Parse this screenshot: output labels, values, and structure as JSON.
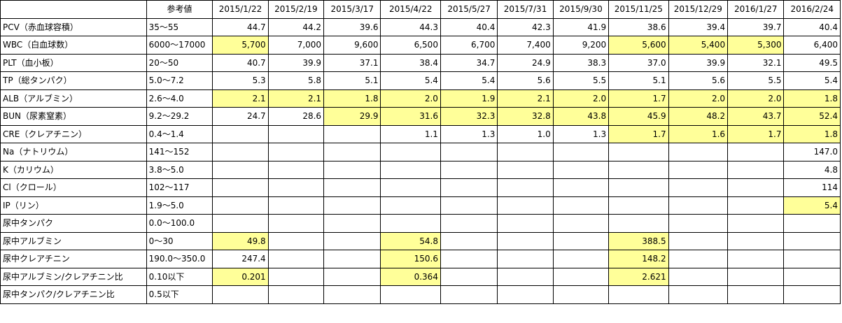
{
  "highlight_color": "#ffff99",
  "header": {
    "ref_label": "参考値",
    "dates": [
      "2015/1/22",
      "2015/2/19",
      "2015/3/17",
      "2015/4/22",
      "2015/5/27",
      "2015/7/31",
      "2015/9/30",
      "2015/11/25",
      "2015/12/29",
      "2016/1/27",
      "2016/2/24"
    ]
  },
  "rows": [
    {
      "label": "PCV（赤血球容積）",
      "ref": "35〜55",
      "values": [
        "44.7",
        "44.2",
        "39.6",
        "44.3",
        "40.4",
        "42.3",
        "41.9",
        "38.6",
        "39.4",
        "39.7",
        "40.4"
      ],
      "highlight": [
        false,
        false,
        false,
        false,
        false,
        false,
        false,
        false,
        false,
        false,
        false
      ]
    },
    {
      "label": "WBC（白血球数）",
      "ref": "6000〜17000",
      "values": [
        "5,700",
        "7,000",
        "9,600",
        "6,500",
        "6,700",
        "7,400",
        "9,200",
        "5,600",
        "5,400",
        "5,300",
        "6,400"
      ],
      "highlight": [
        true,
        false,
        false,
        false,
        false,
        false,
        false,
        true,
        true,
        true,
        false
      ]
    },
    {
      "label": "PLT（血小板）",
      "ref": "20〜50",
      "values": [
        "40.7",
        "39.9",
        "37.1",
        "38.4",
        "34.7",
        "24.9",
        "38.3",
        "37.0",
        "39.9",
        "32.1",
        "49.5"
      ],
      "highlight": [
        false,
        false,
        false,
        false,
        false,
        false,
        false,
        false,
        false,
        false,
        false
      ]
    },
    {
      "label": "TP（総タンパク）",
      "ref": "5.0〜7.2",
      "values": [
        "5.3",
        "5.8",
        "5.1",
        "5.4",
        "5.4",
        "5.6",
        "5.5",
        "5.1",
        "5.6",
        "5.5",
        "5.4"
      ],
      "highlight": [
        false,
        false,
        false,
        false,
        false,
        false,
        false,
        false,
        false,
        false,
        false
      ]
    },
    {
      "label": "ALB（アルブミン）",
      "ref": "2.6〜4.0",
      "values": [
        "2.1",
        "2.1",
        "1.8",
        "2.0",
        "1.9",
        "2.1",
        "2.0",
        "1.7",
        "2.0",
        "2.0",
        "1.8"
      ],
      "highlight": [
        true,
        true,
        true,
        true,
        true,
        true,
        true,
        true,
        true,
        true,
        true
      ]
    },
    {
      "label": "BUN（尿素窒素）",
      "ref": "9.2〜29.2",
      "values": [
        "24.7",
        "28.6",
        "29.9",
        "31.6",
        "32.3",
        "32.8",
        "43.8",
        "45.9",
        "48.2",
        "43.7",
        "52.4"
      ],
      "highlight": [
        false,
        false,
        true,
        true,
        true,
        true,
        true,
        true,
        true,
        true,
        true
      ]
    },
    {
      "label": "CRE（クレアチニン）",
      "ref": "0.4〜1.4",
      "values": [
        "",
        "",
        "",
        "1.1",
        "1.3",
        "1.0",
        "1.3",
        "1.7",
        "1.6",
        "1.7",
        "1.8"
      ],
      "highlight": [
        false,
        false,
        false,
        false,
        false,
        false,
        false,
        true,
        true,
        true,
        true
      ]
    },
    {
      "label": "Na（ナトリウム）",
      "ref": "141〜152",
      "values": [
        "",
        "",
        "",
        "",
        "",
        "",
        "",
        "",
        "",
        "",
        "147.0"
      ],
      "highlight": [
        false,
        false,
        false,
        false,
        false,
        false,
        false,
        false,
        false,
        false,
        false
      ]
    },
    {
      "label": "K（カリウム）",
      "ref": "3.8〜5.0",
      "values": [
        "",
        "",
        "",
        "",
        "",
        "",
        "",
        "",
        "",
        "",
        "4.8"
      ],
      "highlight": [
        false,
        false,
        false,
        false,
        false,
        false,
        false,
        false,
        false,
        false,
        false
      ]
    },
    {
      "label": "Cl（クロール）",
      "ref": "102〜117",
      "values": [
        "",
        "",
        "",
        "",
        "",
        "",
        "",
        "",
        "",
        "",
        "114"
      ],
      "highlight": [
        false,
        false,
        false,
        false,
        false,
        false,
        false,
        false,
        false,
        false,
        false
      ]
    },
    {
      "label": "IP（リン）",
      "ref": "1.9〜5.0",
      "values": [
        "",
        "",
        "",
        "",
        "",
        "",
        "",
        "",
        "",
        "",
        "5.4"
      ],
      "highlight": [
        false,
        false,
        false,
        false,
        false,
        false,
        false,
        false,
        false,
        false,
        true
      ]
    },
    {
      "label": "尿中タンパク",
      "ref": "0.0〜100.0",
      "values": [
        "",
        "",
        "",
        "",
        "",
        "",
        "",
        "",
        "",
        "",
        ""
      ],
      "highlight": [
        false,
        false,
        false,
        false,
        false,
        false,
        false,
        false,
        false,
        false,
        false
      ]
    },
    {
      "label": "尿中アルブミン",
      "ref": "0〜30",
      "values": [
        "49.8",
        "",
        "",
        "54.8",
        "",
        "",
        "",
        "388.5",
        "",
        "",
        ""
      ],
      "highlight": [
        true,
        false,
        false,
        true,
        false,
        false,
        false,
        true,
        false,
        false,
        false
      ]
    },
    {
      "label": "尿中クレアチニン",
      "ref": "190.0〜350.0",
      "values": [
        "247.4",
        "",
        "",
        "150.6",
        "",
        "",
        "",
        "148.2",
        "",
        "",
        ""
      ],
      "highlight": [
        false,
        false,
        false,
        true,
        false,
        false,
        false,
        true,
        false,
        false,
        false
      ]
    },
    {
      "label": "尿中アルブミン/クレアチニン比",
      "ref": "0.10以下",
      "values": [
        "0.201",
        "",
        "",
        "0.364",
        "",
        "",
        "",
        "2.621",
        "",
        "",
        ""
      ],
      "highlight": [
        true,
        false,
        false,
        true,
        false,
        false,
        false,
        true,
        false,
        false,
        false
      ]
    },
    {
      "label": "尿中タンパク/クレアチニン比",
      "ref": "0.5以下",
      "values": [
        "",
        "",
        "",
        "",
        "",
        "",
        "",
        "",
        "",
        "",
        ""
      ],
      "highlight": [
        false,
        false,
        false,
        false,
        false,
        false,
        false,
        false,
        false,
        false,
        false
      ]
    }
  ]
}
